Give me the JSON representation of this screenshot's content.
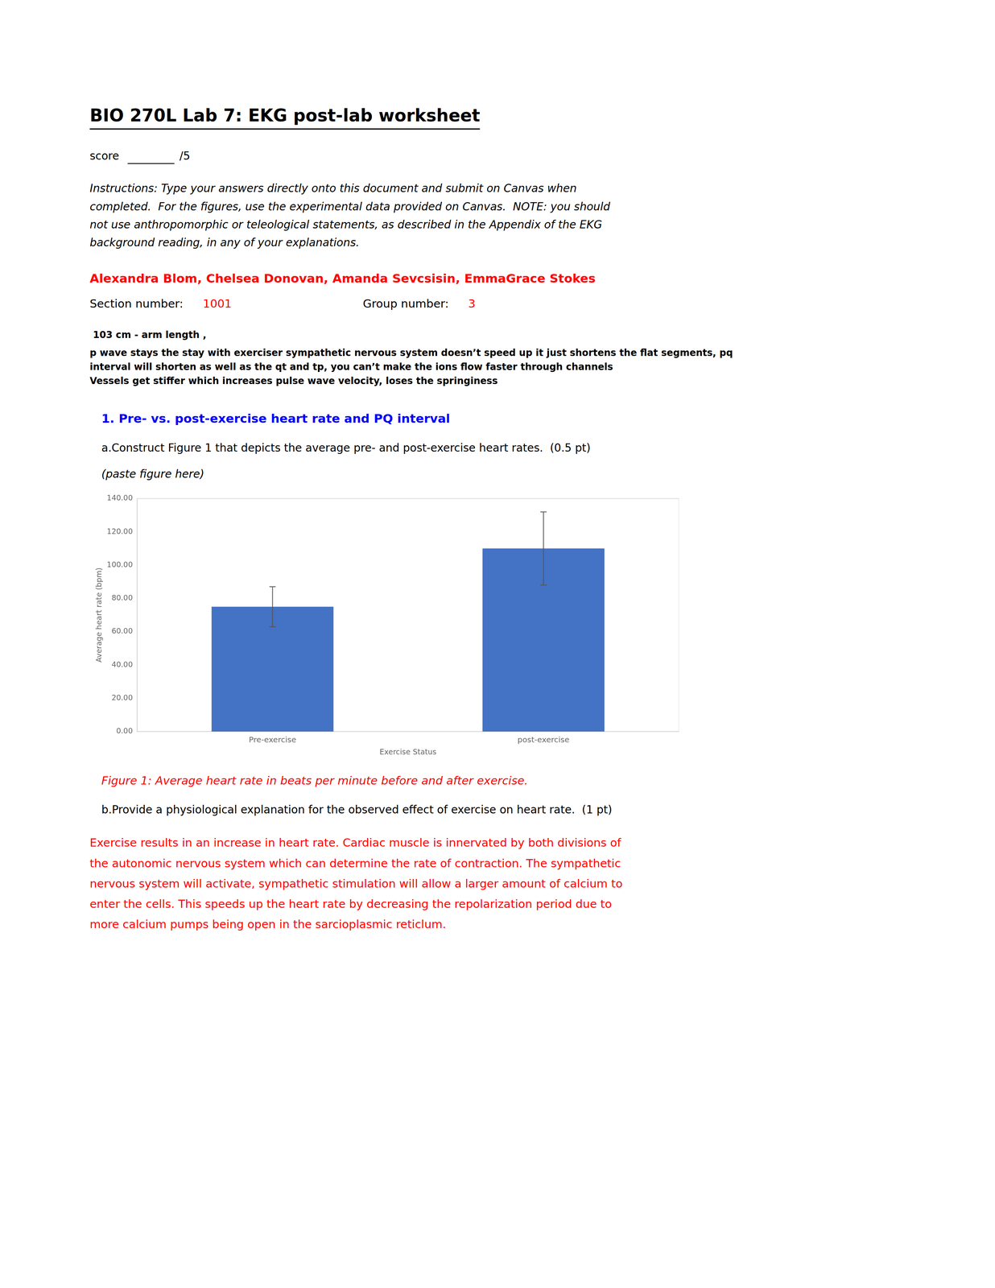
{
  "chart_data": {
    "type": "bar",
    "categories": [
      "Pre-exercise",
      "post-exercise"
    ],
    "values": [
      75.0,
      110.0
    ],
    "errors": [
      12.0,
      22.0
    ],
    "color": "#4472C4",
    "xlabel": "Exercise Status",
    "ylabel": "Average heart rate (bpm)",
    "ylim": [
      0,
      140
    ],
    "yticks": [
      {
        "value": 0,
        "label": "0.00"
      },
      {
        "value": 20,
        "label": "20.00"
      },
      {
        "value": 40,
        "label": "40.00"
      },
      {
        "value": 60,
        "label": "60.00"
      },
      {
        "value": 80,
        "label": "80.00"
      },
      {
        "value": 100,
        "label": "100.00"
      },
      {
        "value": 120,
        "label": "120.00"
      },
      {
        "value": 140,
        "label": "140.00"
      }
    ],
    "grid": false,
    "annotations": [
      {
        "text": "BIO 270L Lab 7: EKG post-lab worksheet"
      },
      {
        "text": "score  "
      },
      {
        "text": " /5"
      },
      {
        "text": "Instructions: Type your answers directly onto this document and submit on Canvas when\ncompleted.  For the figures, use the experimental data provided on Canvas.  NOTE: you should\nnot use anthropomorphic or teleological statements, as described in the Appendix of the EKG\nbackground reading, in any of your explanations."
      },
      {
        "text": "Alexandra Blom, Chelsea Donovan, Amanda Sevcsisin, EmmaGrace Stokes",
        "color": "#FF0000"
      },
      {
        "text": "Section number:  "
      },
      {
        "text": "1001",
        "color": "#FF0000"
      },
      {
        "text": "Group number: "
      },
      {
        "text": "3",
        "color": "#FF0000"
      },
      {
        "text": " 103 cm - arm length ,"
      },
      {
        "text": "p wave stays the stay with exerciser sympathetic nervous system doesn’t speed up it just shortens the flat segments, pq\ninterval will shorten as well as the qt and tp, you can’t make the ions flow faster through channels\nVessels get stiffer which increases pulse wave velocity, loses the springiness"
      },
      {
        "text": "1. Pre- vs. post-exercise heart rate and PQ interval",
        "color": "#0000FF"
      },
      {
        "text": "a.Construct Figure 1 that depicts the average pre- and post-exercise heart rates.  (0.5 pt)"
      },
      {
        "text": "(paste figure here)"
      },
      {
        "text": "Figure 1: Average heart rate in beats per minute before and after exercise.",
        "color": "#FF0000"
      },
      {
        "text": "b.Provide a physiological explanation for the observed effect of exercise on heart rate.  (1 pt)"
      },
      {
        "text": "Exercise results in an increase in heart rate. Cardiac muscle is innervated by both divisions of\nthe autonomic nervous system which can determine the rate of contraction. The sympathetic\nnervous system will activate, sympathetic stimulation will allow a larger amount of calcium to\nenter the cells. This speeds up the heart rate by decreasing the repolarization period due to\nmore calcium pumps being open in the sarcioplasmic reticlum.",
        "color": "#FF0000"
      }
    ]
  }
}
